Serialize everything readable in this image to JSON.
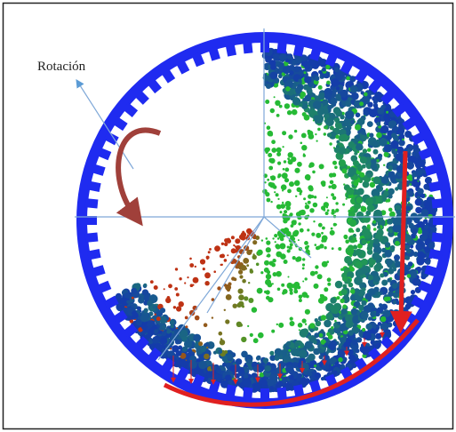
{
  "figure": {
    "label": "Rotación"
  }
}
